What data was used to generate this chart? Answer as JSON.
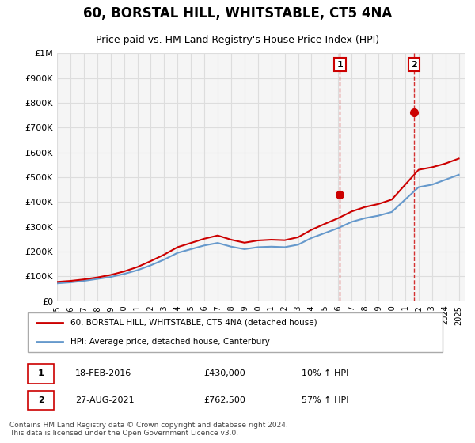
{
  "title": "60, BORSTAL HILL, WHITSTABLE, CT5 4NA",
  "subtitle": "Price paid vs. HM Land Registry's House Price Index (HPI)",
  "hpi_label": "HPI: Average price, detached house, Canterbury",
  "price_label": "60, BORSTAL HILL, WHITSTABLE, CT5 4NA (detached house)",
  "ylabel_top": "£1M",
  "yticks": [
    0,
    100000,
    200000,
    300000,
    400000,
    500000,
    600000,
    700000,
    800000,
    900000,
    1000000
  ],
  "ytick_labels": [
    "£0",
    "£100K",
    "£200K",
    "£300K",
    "£400K",
    "£500K",
    "£600K",
    "£700K",
    "£800K",
    "£900K",
    "£1M"
  ],
  "xmin": 1995.0,
  "xmax": 2025.5,
  "ymin": 0,
  "ymax": 1000000,
  "sale1_x": 2016.12,
  "sale1_y": 430000,
  "sale1_label": "18-FEB-2016",
  "sale1_price": "£430,000",
  "sale1_hpi": "10% ↑ HPI",
  "sale2_x": 2021.65,
  "sale2_y": 762500,
  "sale2_label": "27-AUG-2021",
  "sale2_price": "£762,500",
  "sale2_hpi": "57% ↑ HPI",
  "hpi_color": "#6699cc",
  "price_color": "#cc0000",
  "dashed_color": "#cc0000",
  "grid_color": "#dddddd",
  "bg_color": "#ffffff",
  "plot_bg_color": "#f5f5f5",
  "annotation_box_color": "#cc0000",
  "footer": "Contains HM Land Registry data © Crown copyright and database right 2024.\nThis data is licensed under the Open Government Licence v3.0.",
  "hpi_data_x": [
    1995,
    1996,
    1997,
    1998,
    1999,
    2000,
    2001,
    2002,
    2003,
    2004,
    2005,
    2006,
    2007,
    2008,
    2009,
    2010,
    2011,
    2012,
    2013,
    2014,
    2015,
    2016,
    2017,
    2018,
    2019,
    2020,
    2021,
    2022,
    2023,
    2024,
    2025
  ],
  "hpi_data_y": [
    72000,
    76000,
    82000,
    90000,
    98000,
    110000,
    125000,
    145000,
    168000,
    195000,
    210000,
    225000,
    235000,
    220000,
    210000,
    218000,
    220000,
    218000,
    228000,
    255000,
    275000,
    295000,
    320000,
    335000,
    345000,
    360000,
    410000,
    460000,
    470000,
    490000,
    510000
  ],
  "price_data_x": [
    1995,
    1996,
    1997,
    1998,
    1999,
    2000,
    2001,
    2002,
    2003,
    2004,
    2005,
    2006,
    2007,
    2008,
    2009,
    2010,
    2011,
    2012,
    2013,
    2014,
    2015,
    2016,
    2017,
    2018,
    2019,
    2020,
    2021,
    2022,
    2023,
    2024,
    2025
  ],
  "price_data_y": [
    78000,
    82000,
    88000,
    96000,
    106000,
    120000,
    138000,
    162000,
    188000,
    218000,
    235000,
    252000,
    265000,
    248000,
    236000,
    245000,
    248000,
    246000,
    258000,
    288000,
    312000,
    335000,
    362000,
    380000,
    392000,
    410000,
    470000,
    530000,
    540000,
    555000,
    575000
  ],
  "xticks": [
    1995,
    1996,
    1997,
    1998,
    1999,
    2000,
    2001,
    2002,
    2003,
    2004,
    2005,
    2006,
    2007,
    2008,
    2009,
    2010,
    2011,
    2012,
    2013,
    2014,
    2015,
    2016,
    2017,
    2018,
    2019,
    2020,
    2021,
    2022,
    2023,
    2024,
    2025
  ]
}
